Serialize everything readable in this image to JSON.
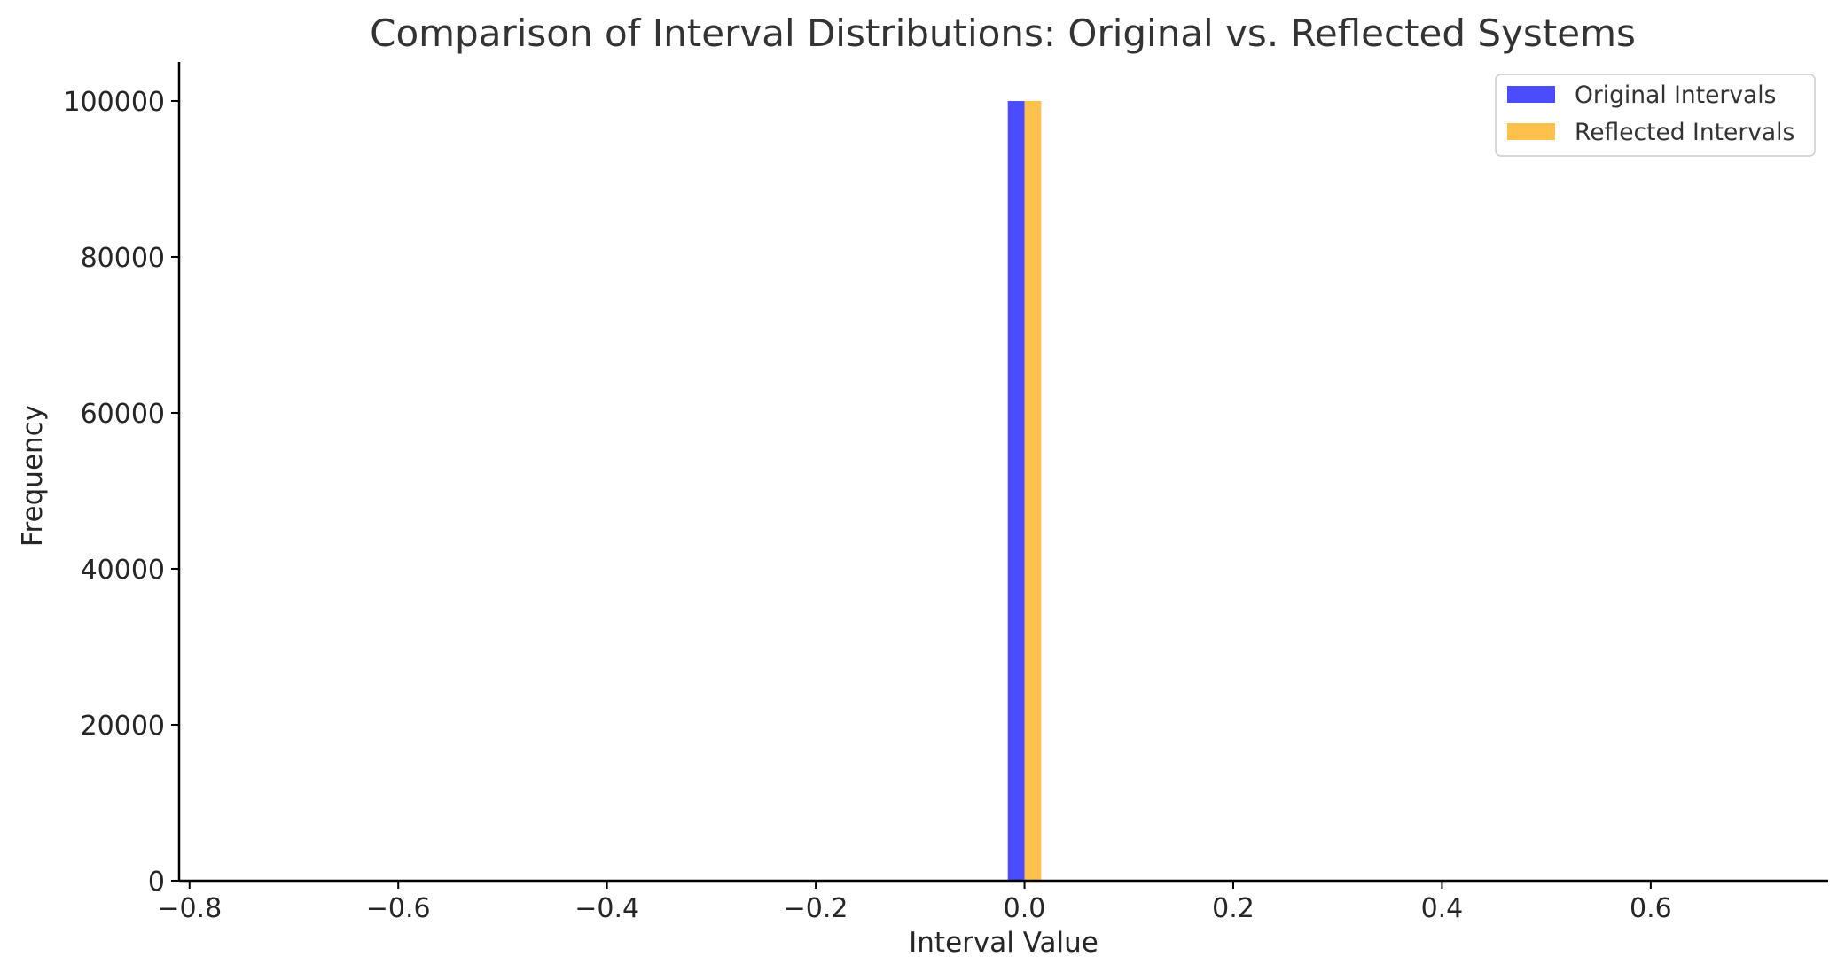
{
  "chart_data": {
    "type": "bar",
    "title": "Comparison of Interval Distributions: Original vs. Reflected Systems",
    "xlabel": "Interval Value",
    "ylabel": "Frequency",
    "xlim": [
      -0.81,
      0.77
    ],
    "ylim": [
      0,
      105000
    ],
    "xticks": [
      -0.8,
      -0.6,
      -0.4,
      -0.2,
      0.0,
      0.2,
      0.4,
      0.6
    ],
    "xtick_labels": [
      "−0.8",
      "−0.6",
      "−0.4",
      "−0.2",
      "0.0",
      "0.2",
      "0.4",
      "0.6"
    ],
    "yticks": [
      0,
      20000,
      40000,
      60000,
      80000,
      100000
    ],
    "ytick_labels": [
      "0",
      "20000",
      "40000",
      "60000",
      "80000",
      "100000"
    ],
    "grid": false,
    "legend_position": "top-right",
    "series": [
      {
        "name": "Original Intervals",
        "color": "#0000ff",
        "opacity": 0.7,
        "bins": [
          {
            "x0": -0.016,
            "x1": 0.0,
            "value": 100000
          }
        ]
      },
      {
        "name": "Reflected Intervals",
        "color": "#ffa500",
        "opacity": 0.7,
        "bins": [
          {
            "x0": 0.0,
            "x1": 0.016,
            "value": 100000
          }
        ]
      }
    ]
  }
}
